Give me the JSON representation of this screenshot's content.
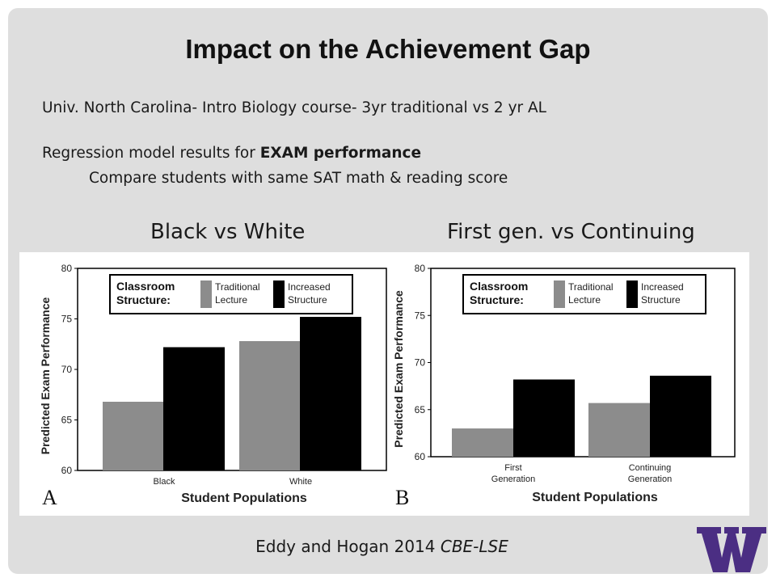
{
  "slide": {
    "title": "Impact on the Achievement Gap",
    "line1": "Univ. North Carolina- Intro Biology course- 3yr traditional vs 2 yr AL",
    "line2_prefix": "Regression model results for ",
    "line2_bold": "EXAM performance",
    "line3": "Compare students with same SAT math & reading score",
    "left_heading": "Black vs White",
    "right_heading": "First gen. vs Continuing",
    "citation_authors": "Eddy and Hogan 2014 ",
    "citation_journal": "CBE-LSE",
    "logo_letter": "W"
  },
  "chart_data": [
    {
      "type": "bar",
      "panel_label": "A",
      "categories": [
        "Black",
        "White"
      ],
      "series": [
        {
          "name": "Traditional Lecture",
          "values": [
            66.8,
            72.8
          ],
          "color": "#8c8c8c"
        },
        {
          "name": "Increased Structure",
          "values": [
            72.2,
            75.2
          ],
          "color": "#000000"
        }
      ],
      "ylim": [
        60,
        80
      ],
      "yticks": [
        "60",
        "65",
        "70",
        "75",
        "80"
      ],
      "ylabel": "Predicted Exam Performance",
      "xlabel": "Student Populations",
      "legend_title": [
        "Classroom",
        "Structure:"
      ],
      "legend_labels": [
        [
          "Traditional",
          "Lecture"
        ],
        [
          "Increased",
          "Structure"
        ]
      ],
      "legend_position": "top",
      "grid": false
    },
    {
      "type": "bar",
      "panel_label": "B",
      "categories": [
        "First Generation",
        "Continuing Generation"
      ],
      "category_lines": [
        [
          "First",
          "Generation"
        ],
        [
          "Continuing",
          "Generation"
        ]
      ],
      "series": [
        {
          "name": "Traditional Lecture",
          "values": [
            63.0,
            65.7
          ],
          "color": "#8c8c8c"
        },
        {
          "name": "Increased Structure",
          "values": [
            68.2,
            68.6
          ],
          "color": "#000000"
        }
      ],
      "ylim": [
        60,
        80
      ],
      "yticks": [
        "60",
        "65",
        "70",
        "75",
        "80"
      ],
      "ylabel": "Predicted Exam Performance",
      "xlabel": "Student Populations",
      "legend_title": [
        "Classroom",
        "Structure:"
      ],
      "legend_labels": [
        [
          "Traditional",
          "Lecture"
        ],
        [
          "Increased",
          "Structure"
        ]
      ],
      "legend_position": "top",
      "grid": false
    }
  ]
}
